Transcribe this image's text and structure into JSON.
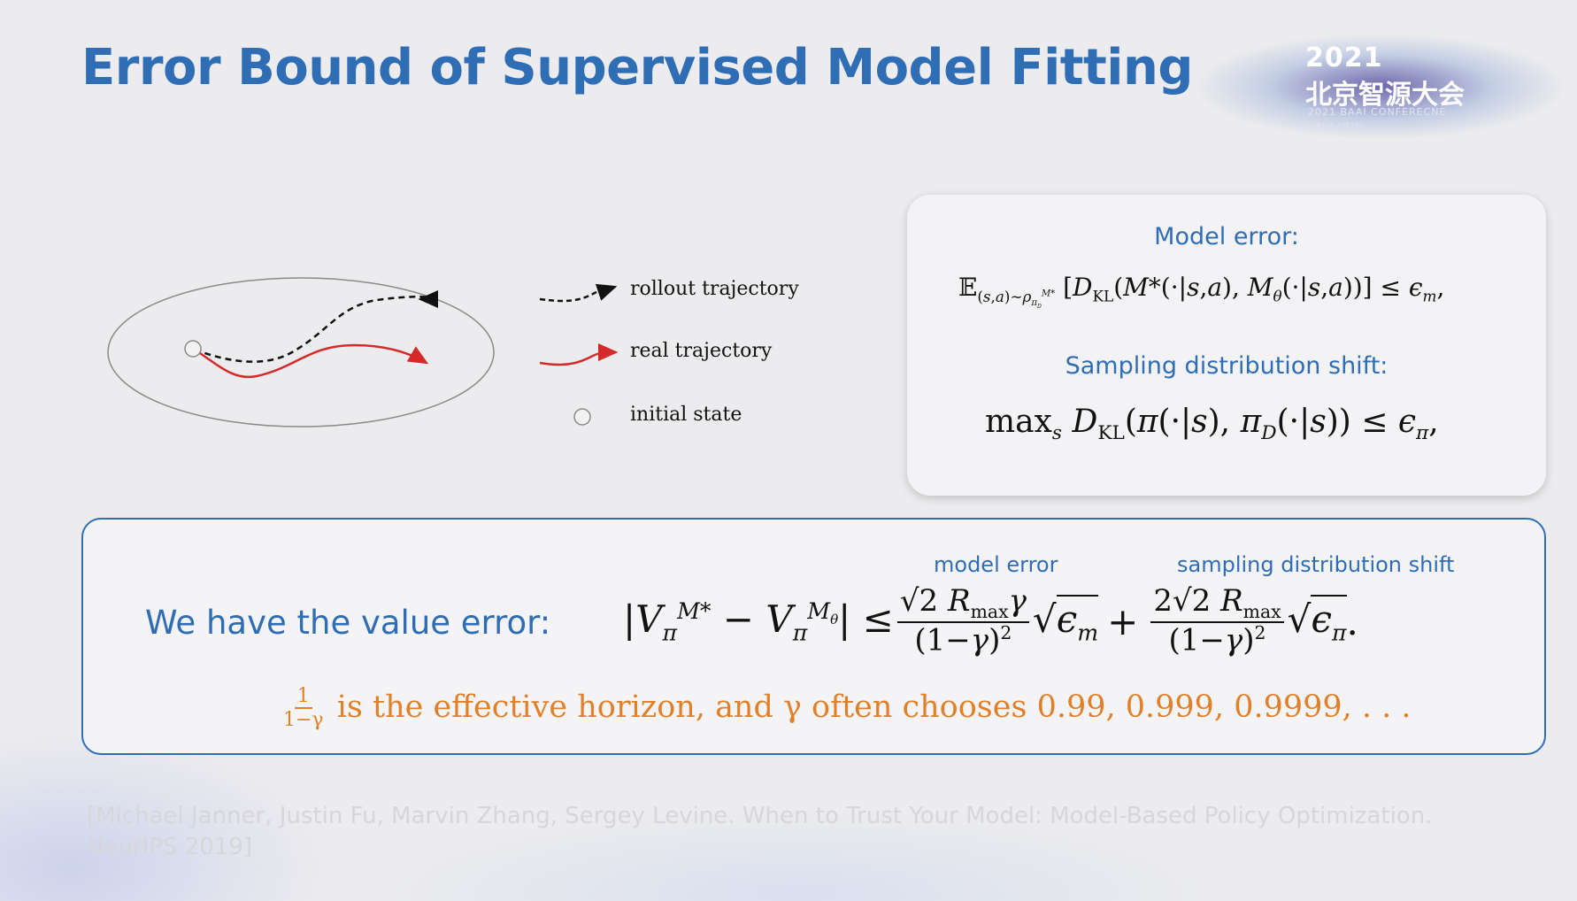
{
  "slide": {
    "title": "Error Bound of Supervised Model Fitting",
    "logo": {
      "year": "2021",
      "name": "北京智源大会",
      "subtitle": "2021 BAAI CONFERECNE",
      "date": "6月1日-6月3日"
    }
  },
  "diagram": {
    "legend": [
      {
        "label": "rollout trajectory",
        "style": "dashed",
        "color": "#111111"
      },
      {
        "label": "real trajectory",
        "style": "solid",
        "color": "#d42a2a"
      },
      {
        "label": "initial state",
        "style": "circle",
        "color": "#888888"
      }
    ]
  },
  "model_box": {
    "model_error_heading": "Model error:",
    "model_error_formula": "E(s,a)~ρπD M* [DKL(M*(·|s,a), Mθ(·|s,a))] ≤ εm,",
    "shift_heading": "Sampling distribution shift:",
    "shift_formula": "maxs DKL(π(·|s), πD(·|s)) ≤ επ,"
  },
  "value_box": {
    "label": "We have the value error:",
    "annotation_model_error": "model error",
    "annotation_shift": "sampling distribution shift",
    "formula": "|Vπ M* − Vπ Mθ| ≤ √2 Rmax γ / (1−γ)² √εm + 2√2 Rmax / (1−γ)² √επ.",
    "horizon_frac_num": "1",
    "horizon_frac_den": "1−γ",
    "horizon_text": "is the effective horizon, and γ often chooses 0.99, 0.999, 0.9999, . . ."
  },
  "citation": "[Michael Janner, Justin Fu, Marvin Zhang, Sergey Levine. When to Trust Your Model: Model-Based Policy Optimization. NeurIPS 2019]",
  "colors": {
    "accent": "#2f6db5",
    "highlight": "#e0812a",
    "real_trajectory": "#d42a2a"
  }
}
